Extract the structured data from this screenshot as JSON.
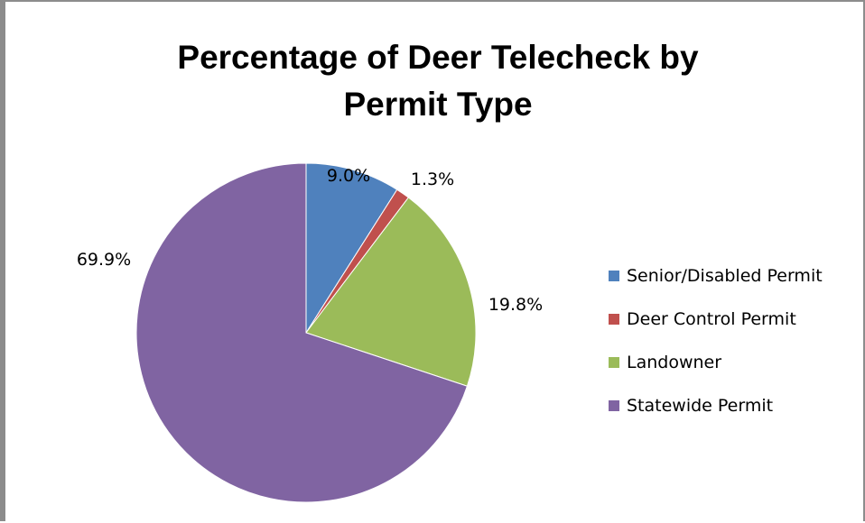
{
  "chart_data": {
    "type": "pie",
    "title": "Percentage of Deer Telecheck by\nPermit Type",
    "categories": [
      "Senior/Disabled Permit",
      "Deer Control Permit",
      "Landowner",
      "Statewide Permit"
    ],
    "values": [
      9.0,
      1.3,
      19.8,
      69.9
    ],
    "labels": [
      "9.0%",
      "1.3%",
      "19.8%",
      "69.9%"
    ],
    "colors": [
      "#4F81BD",
      "#C0504D",
      "#9BBB59",
      "#8064A2"
    ],
    "legend_position": "right"
  }
}
